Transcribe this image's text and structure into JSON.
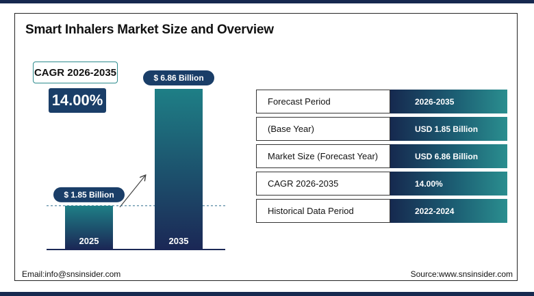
{
  "title": "Smart Inhalers Market Size and Overview",
  "cagr": {
    "label": "CAGR 2026-2035",
    "value": "14.00%"
  },
  "chart_data": {
    "type": "bar",
    "categories": [
      "2025",
      "2035"
    ],
    "values": [
      1.85,
      6.86
    ],
    "data_labels": [
      "$ 1.85 Billion",
      "$ 6.86 Billion"
    ],
    "unit": "USD Billion",
    "grid": false,
    "colors": {
      "bar_top": "#1e7f86",
      "bar_bottom": "#1b2856",
      "label_bg": "#1a3e68"
    }
  },
  "table": {
    "rows": [
      {
        "label": "Forecast Period",
        "value": "2026-2035"
      },
      {
        "label": "(Base Year)",
        "value": "USD 1.85 Billion"
      },
      {
        "label": "Market Size (Forecast Year)",
        "value": "USD 6.86 Billion"
      },
      {
        "label": "CAGR 2026-2035",
        "value": "14.00%"
      },
      {
        "label": "Historical Data Period",
        "value": "2022-2024"
      }
    ]
  },
  "footer": {
    "email": "Email:info@snsinsider.com",
    "source": "Source:www.snsinsider.com"
  }
}
